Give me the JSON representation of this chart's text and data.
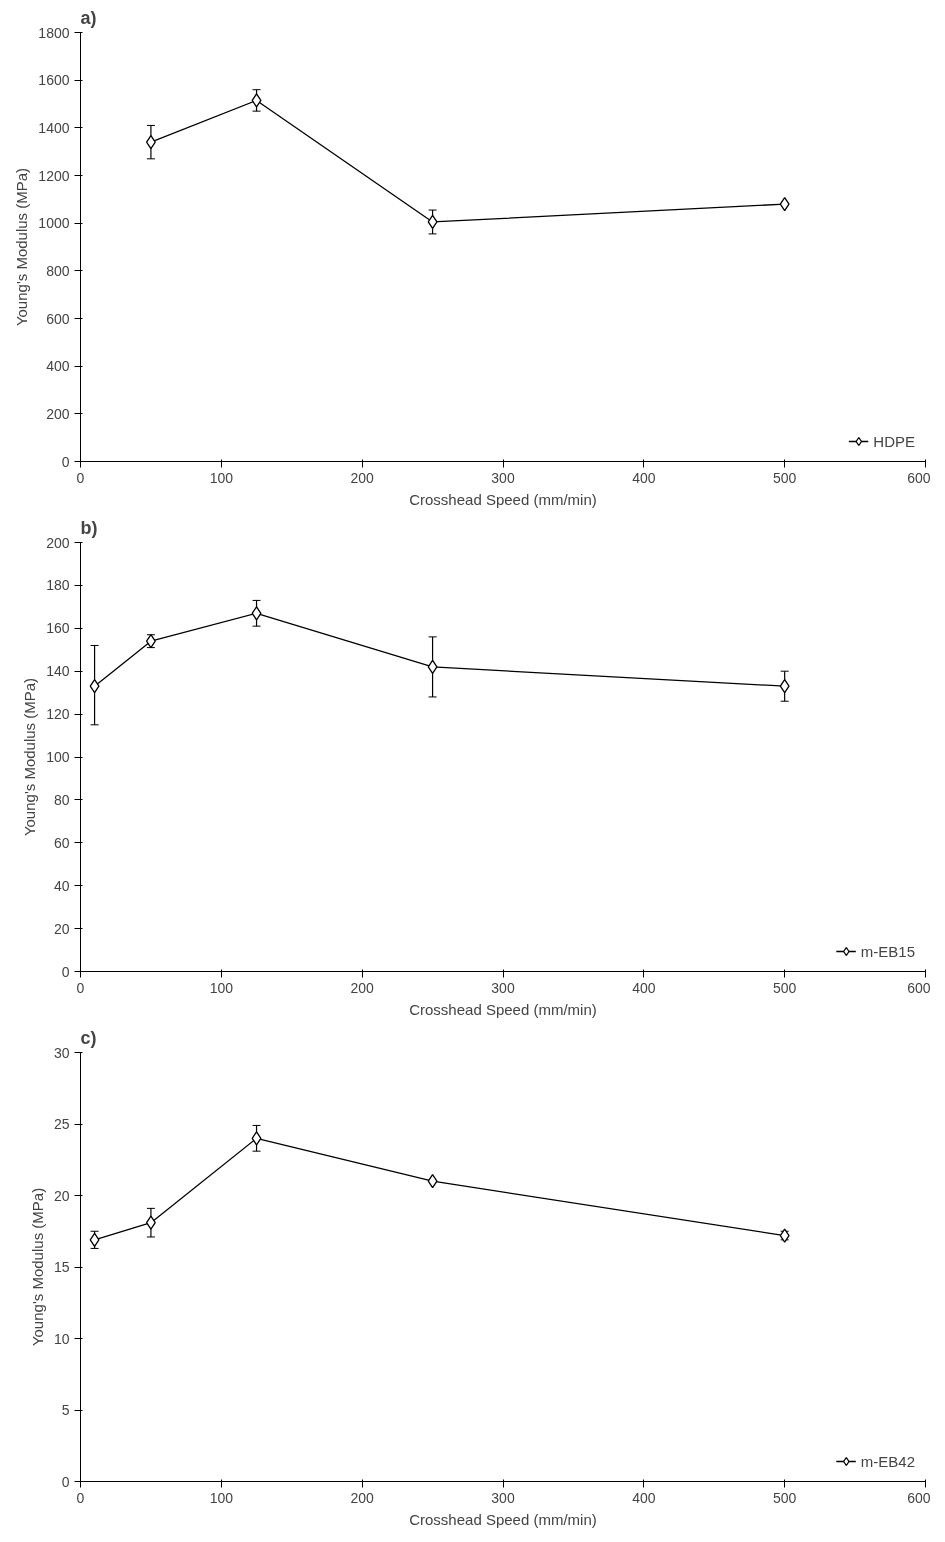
{
  "chart_data": [
    {
      "type": "line",
      "title": "a)",
      "xlabel": "Crosshead Speed (mm/min)",
      "ylabel": "Young's Modulus (MPa)",
      "x": [
        50,
        125,
        250,
        500
      ],
      "series": [
        {
          "name": "HDPE",
          "color": "#000000",
          "values": [
            1340,
            1515,
            1005,
            1080
          ],
          "errors": [
            70,
            45,
            50,
            null
          ]
        }
      ],
      "xlim": [
        0,
        600
      ],
      "xticks": [
        0,
        100,
        200,
        300,
        400,
        500,
        600
      ],
      "ylim": [
        0,
        1800
      ],
      "yticks": [
        0,
        200,
        400,
        600,
        800,
        1000,
        1200,
        1400,
        1600,
        1800
      ],
      "grid": false,
      "legend": "bottom right",
      "marker": "diamond",
      "line_style": "solid"
    },
    {
      "type": "line",
      "title": "b)",
      "xlabel": "Crosshead Speed (mm/min)",
      "ylabel": "Young's Modulus (MPa)",
      "x": [
        10,
        50,
        125,
        250,
        500
      ],
      "series": [
        {
          "name": "m-EB15",
          "color": "#000000",
          "values": [
            133,
            154,
            167,
            142,
            133
          ],
          "errors": [
            [
              115,
              152
            ],
            3,
            6,
            [
              128,
              156
            ],
            7
          ]
        }
      ],
      "xlim": [
        0,
        600
      ],
      "xticks": [
        0,
        100,
        200,
        300,
        400,
        500,
        600
      ],
      "ylim": [
        0,
        200
      ],
      "yticks": [
        0,
        20,
        40,
        60,
        80,
        100,
        120,
        140,
        160,
        180,
        200
      ],
      "grid": false,
      "legend": "bottom right",
      "marker": "diamond",
      "line_style": "solid"
    },
    {
      "type": "line",
      "title": "c)",
      "xlabel": "Crosshead Speed (mm/min)",
      "ylabel": "Young's Modulus (MPa)",
      "x": [
        10,
        50,
        125,
        250,
        500
      ],
      "series": [
        {
          "name": "m-EB42",
          "color": "#000000",
          "values": [
            16.9,
            18.1,
            24,
            21,
            17.2
          ],
          "errors": [
            0.6,
            1,
            0.9,
            null,
            0.3
          ]
        }
      ],
      "xlim": [
        0,
        600
      ],
      "xticks": [
        0,
        100,
        200,
        300,
        400,
        500,
        600
      ],
      "ylim": [
        0,
        30
      ],
      "yticks": [
        0,
        5,
        10,
        15,
        20,
        25,
        30
      ],
      "grid": false,
      "legend": "bottom right",
      "marker": "diamond",
      "line_style": "solid"
    }
  ]
}
